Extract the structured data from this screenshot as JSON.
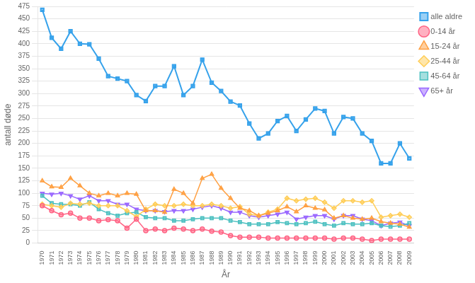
{
  "chart_data": {
    "type": "line",
    "x": [
      1970,
      1971,
      1972,
      1973,
      1974,
      1975,
      1976,
      1977,
      1978,
      1979,
      1980,
      1981,
      1982,
      1983,
      1984,
      1985,
      1986,
      1987,
      1988,
      1989,
      1990,
      1991,
      1992,
      1993,
      1994,
      1995,
      1996,
      1997,
      1998,
      1999,
      2000,
      2001,
      2002,
      2003,
      2004,
      2005,
      2006,
      2007,
      2008,
      2009
    ],
    "series": [
      {
        "name": "alle aldre",
        "marker": "square",
        "values": [
          468,
          412,
          390,
          425,
          400,
          399,
          370,
          335,
          330,
          325,
          297,
          285,
          315,
          315,
          355,
          297,
          315,
          368,
          322,
          305,
          284,
          276,
          240,
          210,
          220,
          245,
          255,
          225,
          248,
          270,
          265,
          220,
          253,
          250,
          220,
          205,
          160,
          160,
          200,
          170
        ]
      },
      {
        "name": "0-14 år",
        "marker": "circle",
        "values": [
          75,
          65,
          57,
          60,
          50,
          50,
          45,
          47,
          45,
          30,
          48,
          25,
          28,
          25,
          30,
          28,
          25,
          28,
          24,
          22,
          15,
          12,
          12,
          12,
          10,
          10,
          10,
          10,
          10,
          10,
          10,
          8,
          10,
          10,
          8,
          5,
          8,
          8,
          8,
          8
        ]
      },
      {
        "name": "15-24 år",
        "marker": "triangle-up",
        "values": [
          125,
          113,
          112,
          130,
          115,
          100,
          95,
          100,
          95,
          100,
          98,
          65,
          65,
          62,
          108,
          100,
          80,
          130,
          138,
          110,
          90,
          70,
          65,
          55,
          60,
          65,
          73,
          63,
          75,
          70,
          67,
          50,
          55,
          50,
          48,
          50,
          43,
          40,
          38,
          32
        ]
      },
      {
        "name": "25-44 år",
        "marker": "diamond",
        "values": [
          78,
          75,
          72,
          80,
          78,
          80,
          75,
          75,
          75,
          65,
          53,
          68,
          78,
          75,
          75,
          78,
          75,
          75,
          78,
          75,
          70,
          73,
          58,
          55,
          62,
          68,
          90,
          85,
          88,
          90,
          82,
          70,
          85,
          85,
          82,
          85,
          52,
          55,
          58,
          52
        ]
      },
      {
        "name": "45-64 år",
        "marker": "square",
        "values": [
          95,
          80,
          78,
          78,
          75,
          82,
          68,
          60,
          55,
          60,
          62,
          52,
          50,
          50,
          45,
          45,
          48,
          50,
          50,
          50,
          45,
          42,
          38,
          38,
          38,
          42,
          40,
          38,
          40,
          43,
          38,
          35,
          40,
          38,
          38,
          40,
          35,
          33,
          35,
          40
        ]
      },
      {
        "name": "65+ år",
        "marker": "triangle-down",
        "values": [
          100,
          98,
          100,
          95,
          88,
          95,
          85,
          85,
          78,
          78,
          68,
          65,
          65,
          63,
          65,
          65,
          68,
          72,
          75,
          70,
          62,
          62,
          55,
          52,
          55,
          58,
          62,
          48,
          52,
          55,
          55,
          48,
          55,
          55,
          48,
          45,
          35,
          40,
          42,
          35
        ]
      }
    ],
    "xlabel": "År",
    "ylabel": "antall døde",
    "xlim": [
      1969.5,
      2009.5
    ],
    "xticks": [
      1970,
      1971,
      1972,
      1973,
      1974,
      1975,
      1976,
      1977,
      1978,
      1979,
      1980,
      1981,
      1982,
      1983,
      1984,
      1985,
      1986,
      1987,
      1988,
      1989,
      1990,
      1991,
      1992,
      1993,
      1994,
      1995,
      1996,
      1997,
      1998,
      1999,
      2000,
      2001,
      2002,
      2003,
      2004,
      2005,
      2006,
      2007,
      2008,
      2009
    ],
    "ylim": [
      0,
      475
    ],
    "yticks": [
      0,
      25,
      50,
      75,
      100,
      125,
      150,
      175,
      200,
      225,
      250,
      275,
      300,
      325,
      350,
      375,
      400,
      425,
      450,
      475
    ],
    "grid": "y",
    "legend": "right"
  }
}
